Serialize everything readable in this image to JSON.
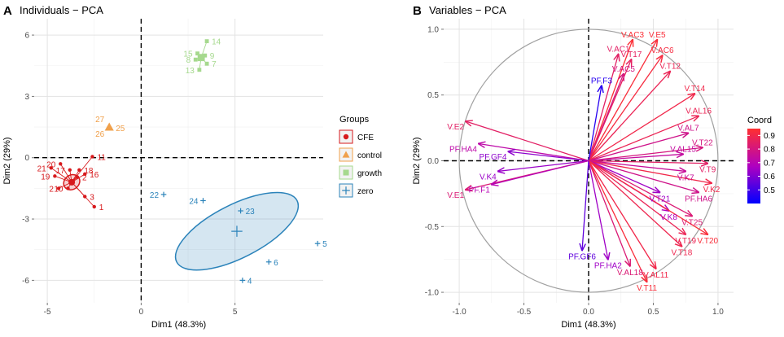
{
  "chart_data": [
    {
      "type": "scatter",
      "panel_label": "A",
      "title": "Individuals − PCA",
      "xlabel": "Dim1 (48.3%)",
      "ylabel": "Dim2 (29%)",
      "xlim": [
        -5.7,
        9.7
      ],
      "ylim": [
        -7.1,
        6.8
      ],
      "xticks": [
        -5,
        0,
        5
      ],
      "yticks": [
        -6,
        -3,
        0,
        3,
        6
      ],
      "tick_labels_x": [
        "-5",
        "0",
        "5"
      ],
      "tick_labels_y": [
        "-6",
        "-3",
        "0",
        "3",
        "6"
      ],
      "legend": {
        "title": "Groups",
        "position": "right",
        "entries": [
          {
            "name": "CFE",
            "color": "#d7191c",
            "shape": "circle"
          },
          {
            "name": "control",
            "color": "#f0a04b",
            "shape": "triangle"
          },
          {
            "name": "growth",
            "color": "#a6d98e",
            "shape": "square"
          },
          {
            "name": "zero",
            "color": "#2b83ba",
            "shape": "cross"
          }
        ]
      },
      "groups": [
        {
          "name": "CFE",
          "color": "#d7191c",
          "shape": "circle",
          "centroid": [
            -3.7,
            -1.2
          ],
          "ellipse": {
            "rx": 0.45,
            "ry": 0.35,
            "angle": -35
          },
          "points": [
            {
              "label": "1",
              "x": -2.5,
              "y": -2.4
            },
            {
              "label": "2",
              "x": -4.4,
              "y": -1.5
            },
            {
              "label": "2",
              "x": -3.4,
              "y": -0.95
            },
            {
              "label": "3",
              "x": -3.0,
              "y": -1.9
            },
            {
              "label": "10",
              "x": -3.9,
              "y": -1.5
            },
            {
              "label": "11",
              "x": -2.6,
              "y": 0.05
            },
            {
              "label": "16",
              "x": -3.0,
              "y": -0.8
            },
            {
              "label": "17",
              "x": -3.8,
              "y": -0.6
            },
            {
              "label": "18",
              "x": -3.3,
              "y": -0.6
            },
            {
              "label": "19",
              "x": -4.6,
              "y": -0.9
            },
            {
              "label": "20",
              "x": -4.3,
              "y": -0.3
            },
            {
              "label": "21",
              "x": -4.8,
              "y": -0.5
            }
          ]
        },
        {
          "name": "control",
          "color": "#f0a04b",
          "shape": "triangle",
          "centroid": [
            -1.7,
            1.5
          ],
          "points": [
            {
              "label": "25",
              "x": -1.7,
              "y": 1.5
            },
            {
              "label": "26",
              "x": -1.7,
              "y": 1.5
            },
            {
              "label": "27",
              "x": -1.7,
              "y": 1.5
            }
          ]
        },
        {
          "name": "growth",
          "color": "#a6d98e",
          "shape": "square",
          "centroid": [
            3.2,
            4.9
          ],
          "points": [
            {
              "label": "7",
              "x": 3.5,
              "y": 4.6
            },
            {
              "label": "8",
              "x": 2.9,
              "y": 4.8
            },
            {
              "label": "9",
              "x": 3.4,
              "y": 5.0
            },
            {
              "label": "13",
              "x": 3.1,
              "y": 4.3
            },
            {
              "label": "14",
              "x": 3.5,
              "y": 5.7
            },
            {
              "label": "15",
              "x": 3.0,
              "y": 5.1
            }
          ]
        },
        {
          "name": "zero",
          "color": "#2b83ba",
          "shape": "cross",
          "centroid": [
            5.1,
            -3.6
          ],
          "ellipse": {
            "rx": 3.6,
            "ry": 1.3,
            "angle": -27
          },
          "points": [
            {
              "label": "4",
              "x": 5.4,
              "y": -6.0
            },
            {
              "label": "5",
              "x": 9.4,
              "y": -4.2
            },
            {
              "label": "6",
              "x": 6.8,
              "y": -5.1
            },
            {
              "label": "22",
              "x": 1.2,
              "y": -1.8
            },
            {
              "label": "23",
              "x": 5.3,
              "y": -2.6
            },
            {
              "label": "24",
              "x": 3.3,
              "y": -2.1
            }
          ]
        }
      ]
    },
    {
      "type": "scatter",
      "subtype": "correlation-circle",
      "panel_label": "B",
      "title": "Variables − PCA",
      "xlabel": "Dim1 (48.3%)",
      "ylabel": "Dim2 (29%)",
      "xlim": [
        -1.12,
        1.12
      ],
      "ylim": [
        -1.08,
        1.08
      ],
      "xticks": [
        -1.0,
        -0.5,
        0.0,
        0.5,
        1.0
      ],
      "yticks": [
        -1.0,
        -0.5,
        0.0,
        0.5,
        1.0
      ],
      "tick_labels_x": [
        "-1.0",
        "-0.5",
        "0.0",
        "0.5",
        "1.0"
      ],
      "tick_labels_y": [
        "-1.0",
        "-0.5",
        "0.0",
        "0.5",
        "1.0"
      ],
      "colorbar": {
        "title": "Coord",
        "min": 0.4,
        "max": 0.95,
        "ticks": [
          0.5,
          0.6,
          0.7,
          0.8,
          0.9
        ],
        "tick_labels": [
          "0.5",
          "0.6",
          "0.7",
          "0.8",
          "0.9"
        ],
        "colors": [
          "#0000ff",
          "#b000c0",
          "#ff3030"
        ]
      },
      "variables": [
        {
          "name": "V.AC3",
          "x": 0.34,
          "y": 0.92,
          "coord": 0.94
        },
        {
          "name": "V.E5",
          "x": 0.53,
          "y": 0.92,
          "coord": 0.93
        },
        {
          "name": "V.AC1",
          "x": 0.23,
          "y": 0.81,
          "coord": 0.85
        },
        {
          "name": "V.T17",
          "x": 0.33,
          "y": 0.77,
          "coord": 0.86
        },
        {
          "name": "V.AC6",
          "x": 0.57,
          "y": 0.8,
          "coord": 0.92
        },
        {
          "name": "V.AC5",
          "x": 0.27,
          "y": 0.66,
          "coord": 0.8
        },
        {
          "name": "V.T12",
          "x": 0.63,
          "y": 0.68,
          "coord": 0.88
        },
        {
          "name": "PF.F3",
          "x": 0.1,
          "y": 0.57,
          "coord": 0.46
        },
        {
          "name": "V.T14",
          "x": 0.82,
          "y": 0.51,
          "coord": 0.9
        },
        {
          "name": "V.AL16",
          "x": 0.85,
          "y": 0.34,
          "coord": 0.88
        },
        {
          "name": "V.AL7",
          "x": 0.77,
          "y": 0.21,
          "coord": 0.78
        },
        {
          "name": "V.T22",
          "x": 0.88,
          "y": 0.1,
          "coord": 0.8
        },
        {
          "name": "V.AL15",
          "x": 0.73,
          "y": 0.05,
          "coord": 0.74
        },
        {
          "name": "V.T9",
          "x": 0.92,
          "y": -0.02,
          "coord": 0.85
        },
        {
          "name": "V.K7",
          "x": 0.75,
          "y": -0.08,
          "coord": 0.75
        },
        {
          "name": "V.K2",
          "x": 0.95,
          "y": -0.17,
          "coord": 0.9
        },
        {
          "name": "PF.HA6",
          "x": 0.85,
          "y": -0.24,
          "coord": 0.78
        },
        {
          "name": "V.T21",
          "x": 0.55,
          "y": -0.24,
          "coord": 0.65
        },
        {
          "name": "V.K8",
          "x": 0.62,
          "y": -0.38,
          "coord": 0.68
        },
        {
          "name": "V.T25",
          "x": 0.8,
          "y": -0.42,
          "coord": 0.82
        },
        {
          "name": "V.T19",
          "x": 0.75,
          "y": -0.56,
          "coord": 0.88
        },
        {
          "name": "V.T20",
          "x": 0.92,
          "y": -0.56,
          "coord": 0.93
        },
        {
          "name": "V.T18",
          "x": 0.72,
          "y": -0.65,
          "coord": 0.89
        },
        {
          "name": "V.AL11",
          "x": 0.52,
          "y": -0.82,
          "coord": 0.9
        },
        {
          "name": "V.AL18",
          "x": 0.32,
          "y": -0.8,
          "coord": 0.82
        },
        {
          "name": "V.T11",
          "x": 0.45,
          "y": -0.92,
          "coord": 0.93
        },
        {
          "name": "PF.HA2",
          "x": 0.15,
          "y": -0.75,
          "coord": 0.65
        },
        {
          "name": "PF.GF6",
          "x": -0.05,
          "y": -0.68,
          "coord": 0.55
        },
        {
          "name": "V.E2",
          "x": -0.95,
          "y": 0.3,
          "coord": 0.85
        },
        {
          "name": "PF.HA4",
          "x": -0.85,
          "y": 0.13,
          "coord": 0.72
        },
        {
          "name": "PF.GF4",
          "x": -0.62,
          "y": 0.07,
          "coord": 0.62
        },
        {
          "name": "V.K4",
          "x": -0.7,
          "y": -0.08,
          "coord": 0.64
        },
        {
          "name": "V.E1",
          "x": -0.95,
          "y": -0.22,
          "coord": 0.82
        },
        {
          "name": "PF.F1",
          "x": -0.75,
          "y": -0.18,
          "coord": 0.7
        }
      ]
    }
  ]
}
